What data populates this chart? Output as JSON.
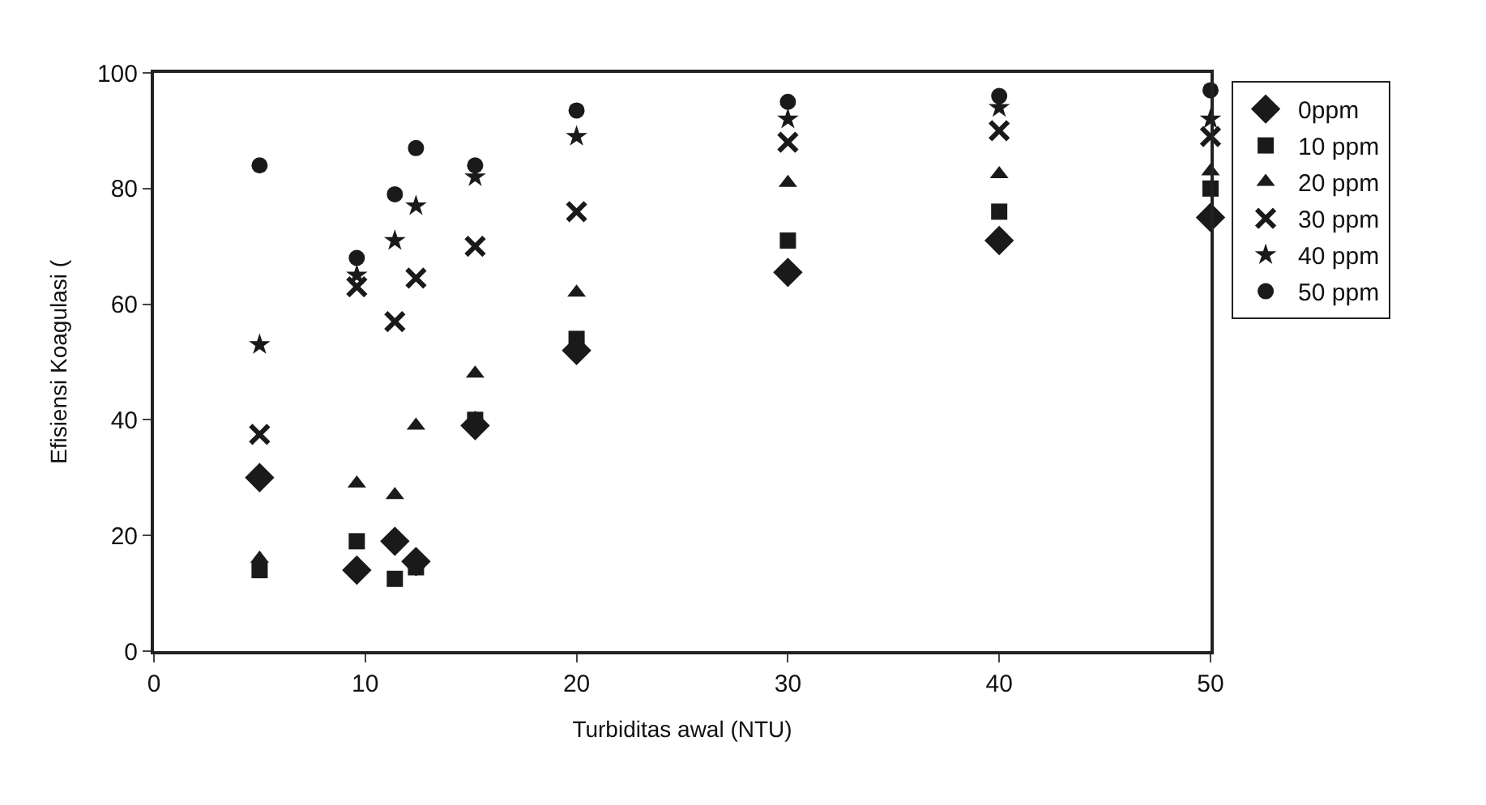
{
  "chart_data": {
    "type": "scatter",
    "xlabel": "Turbiditas awal (NTU)",
    "ylabel": "Efisiensi Koagulasi (",
    "x": [
      5,
      9.6,
      11.4,
      12.4,
      15.2,
      20,
      30,
      40,
      50
    ],
    "series": [
      {
        "name": "0ppm",
        "color": "#1a1a1a",
        "marker": "diamond",
        "values": [
          30,
          14,
          19,
          15.5,
          39,
          52,
          65.5,
          71,
          75
        ]
      },
      {
        "name": "10 ppm",
        "color": "#1a1a1a",
        "marker": "square",
        "values": [
          14,
          19,
          12.5,
          14.5,
          40,
          54,
          71,
          76,
          80
        ]
      },
      {
        "name": "20 ppm",
        "color": "#1a1a1a",
        "marker": "triangle",
        "values": [
          16,
          29,
          27,
          39,
          48,
          62,
          81,
          82.5,
          83
        ]
      },
      {
        "name": "30 ppm",
        "color": "#1a1a1a",
        "marker": "cross",
        "values": [
          37.5,
          63,
          57,
          64.5,
          70,
          76,
          88,
          90,
          89
        ]
      },
      {
        "name": "40 ppm",
        "color": "#1a1a1a",
        "marker": "star",
        "values": [
          53,
          65,
          71,
          77,
          82,
          89,
          92,
          94,
          92
        ]
      },
      {
        "name": "50 ppm",
        "color": "#1a1a1a",
        "marker": "circle",
        "values": [
          84,
          68,
          79,
          87,
          84,
          93.5,
          95,
          96,
          97
        ]
      }
    ],
    "xlim": [
      0,
      50
    ],
    "xticks": [
      0,
      10,
      20,
      30,
      40,
      50
    ],
    "ylim": [
      0,
      100
    ],
    "yticks": [
      0,
      20,
      40,
      60,
      80,
      100
    ],
    "legend": "right"
  }
}
